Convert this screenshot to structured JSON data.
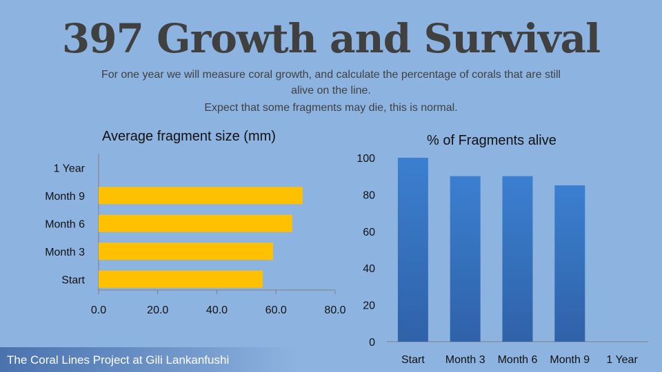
{
  "slide": {
    "title": "397 Growth and Survival",
    "subtitle": "For one year we will measure coral growth, and calculate the percentage of corals that are still alive on the line.",
    "subtitle2": "Expect that some fragments may die, this is normal.",
    "footer": "The Coral Lines Project at Gili Lankanfushi"
  },
  "colors": {
    "background": "#8db3e0",
    "bar_orange": "#ffc000",
    "bar_blue_top": "#3b7fd0",
    "bar_blue_bottom": "#2f62a8"
  },
  "chart_data": [
    {
      "type": "bar",
      "orientation": "horizontal",
      "title": "Average fragment size (mm)",
      "categories": [
        "Start",
        "Month 3",
        "Month 6",
        "Month 9",
        "1 Year"
      ],
      "values": [
        55.5,
        59,
        65.5,
        69,
        null
      ],
      "xlim": [
        0,
        80
      ],
      "xticks": [
        "0.0",
        "20.0",
        "40.0",
        "60.0",
        "80.0"
      ],
      "grid": false
    },
    {
      "type": "bar",
      "orientation": "vertical",
      "title": "% of Fragments alive",
      "categories": [
        "Start",
        "Month 3",
        "Month 6",
        "Month 9",
        "1 Year"
      ],
      "values": [
        100,
        90,
        90,
        85,
        null
      ],
      "ylim": [
        0,
        100
      ],
      "yticks": [
        "0",
        "20",
        "40",
        "60",
        "80",
        "100"
      ],
      "grid": false
    }
  ]
}
